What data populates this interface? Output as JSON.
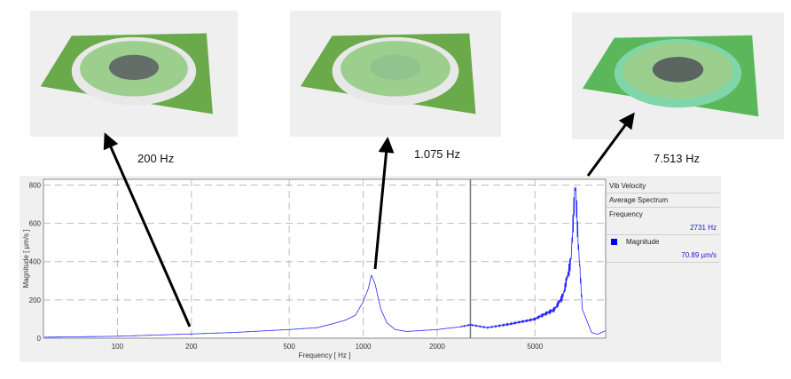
{
  "snapshots": [
    {
      "label": "200 Hz",
      "center_color": "#555560",
      "ring_color": "#e8e8e8",
      "plate_color": "#6aaa4a"
    },
    {
      "label": "1.075 Hz",
      "center_color": "#8fbf90",
      "ring_color": "#e8e8e8",
      "plate_color": "#6aaa4a"
    },
    {
      "label": "7.513 Hz",
      "center_color": "#4a4a55",
      "ring_color": "#7fd6a8",
      "plate_color": "#5ab85a"
    }
  ],
  "legend": {
    "title": "Vib Velocity",
    "subtitle": "Average Spectrum",
    "frequency_label": "Frequency",
    "frequency_value": "2731 Hz",
    "magnitude_label": "Magnitude",
    "magnitude_value": "70.89 µm/s",
    "magnitude_color": "#0000ff"
  },
  "chart_data": {
    "type": "line",
    "xlabel": "Frequency [ Hz ]",
    "ylabel": "Magnitude [ µm/s ]",
    "xscale": "log",
    "xlim": [
      50,
      9700
    ],
    "ylim": [
      0,
      830
    ],
    "xticks": [
      100,
      200,
      500,
      1000,
      2000,
      5000
    ],
    "xtick_labels": [
      "100",
      "200",
      "500",
      "1000",
      "2000",
      "5000"
    ],
    "yticks": [
      0,
      200,
      400,
      600,
      800
    ],
    "ytick_labels": [
      "0",
      "200",
      "400",
      "600",
      "800"
    ],
    "grid": true,
    "cursor_x": 2731,
    "series": [
      {
        "name": "Magnitude",
        "color": "#0000ff",
        "x": [
          50,
          100,
          200,
          300,
          500,
          650,
          750,
          850,
          930,
          1000,
          1050,
          1080,
          1120,
          1180,
          1250,
          1350,
          1500,
          2000,
          2500,
          2731,
          3200,
          4000,
          5000,
          6000,
          6500,
          7000,
          7300,
          7500,
          7800,
          8500,
          9000,
          9700
        ],
        "y": [
          5,
          10,
          22,
          30,
          45,
          55,
          75,
          95,
          120,
          190,
          260,
          330,
          280,
          150,
          80,
          45,
          35,
          45,
          60,
          70,
          55,
          75,
          100,
          150,
          220,
          400,
          810,
          500,
          150,
          30,
          20,
          40
        ]
      }
    ]
  }
}
